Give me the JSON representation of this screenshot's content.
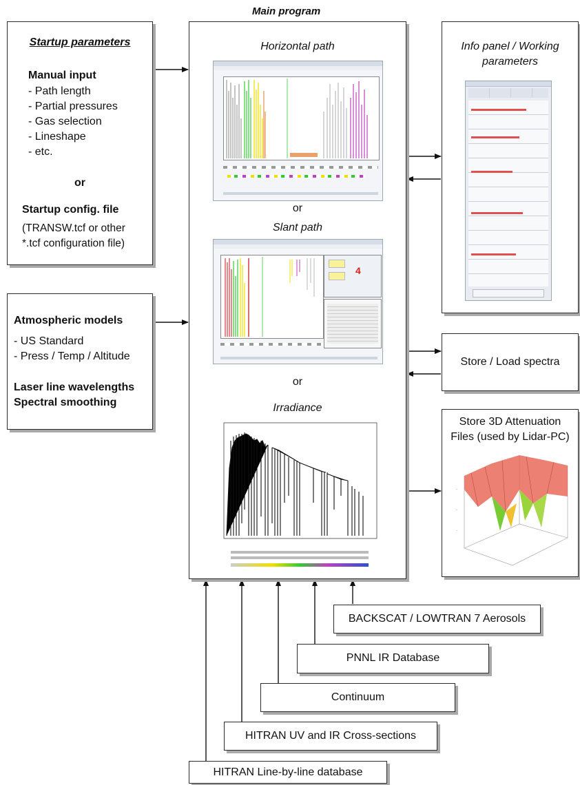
{
  "main": {
    "header": "Main program",
    "horizontal_title": "Horizontal path",
    "or1": "or",
    "slant_title": "Slant path",
    "or2": "or",
    "irradiance_title": "Irradiance"
  },
  "startup": {
    "title": "Startup parameters",
    "manual_heading": "Manual input",
    "items": [
      "- Path length",
      "- Partial pressures",
      "- Gas selection",
      "- Lineshape",
      "- etc."
    ],
    "or": "or",
    "config_heading": "Startup config. file",
    "config_line1": "(TRANSW.tcf or other",
    "config_line2": "*.tcf configuration file)"
  },
  "atmos": {
    "title": "Atmospheric models",
    "items": [
      "- US Standard",
      "- Press / Temp / Altitude"
    ],
    "extra1": "Laser line wavelengths",
    "extra2": "Spectral smoothing"
  },
  "info": {
    "title_line1": "Info panel / Working",
    "title_line2": "parameters"
  },
  "store_load": {
    "label": "Store / Load spectra"
  },
  "store3d": {
    "line1": "Store 3D Attenuation",
    "line2": "Files (used by Lidar-PC)"
  },
  "databases": {
    "backscat": "BACKSCAT / LOWTRAN 7 Aerosols",
    "pnnl": "PNNL IR Database",
    "continuum": "Continuum",
    "hitran_uv": "HITRAN UV and IR Cross-sections",
    "hitran_lbl": "HITRAN Line-by-line database"
  },
  "colors": {
    "border": "#2a2a2a",
    "shadow": "#a9a9a9",
    "spectrum_green": "#33cc33",
    "spectrum_yellow": "#f0e000",
    "spectrum_red": "#d23c3c",
    "spectrum_magenta": "#c040c0",
    "surface_red": "#e86a5a",
    "surface_green": "#77cc33"
  }
}
